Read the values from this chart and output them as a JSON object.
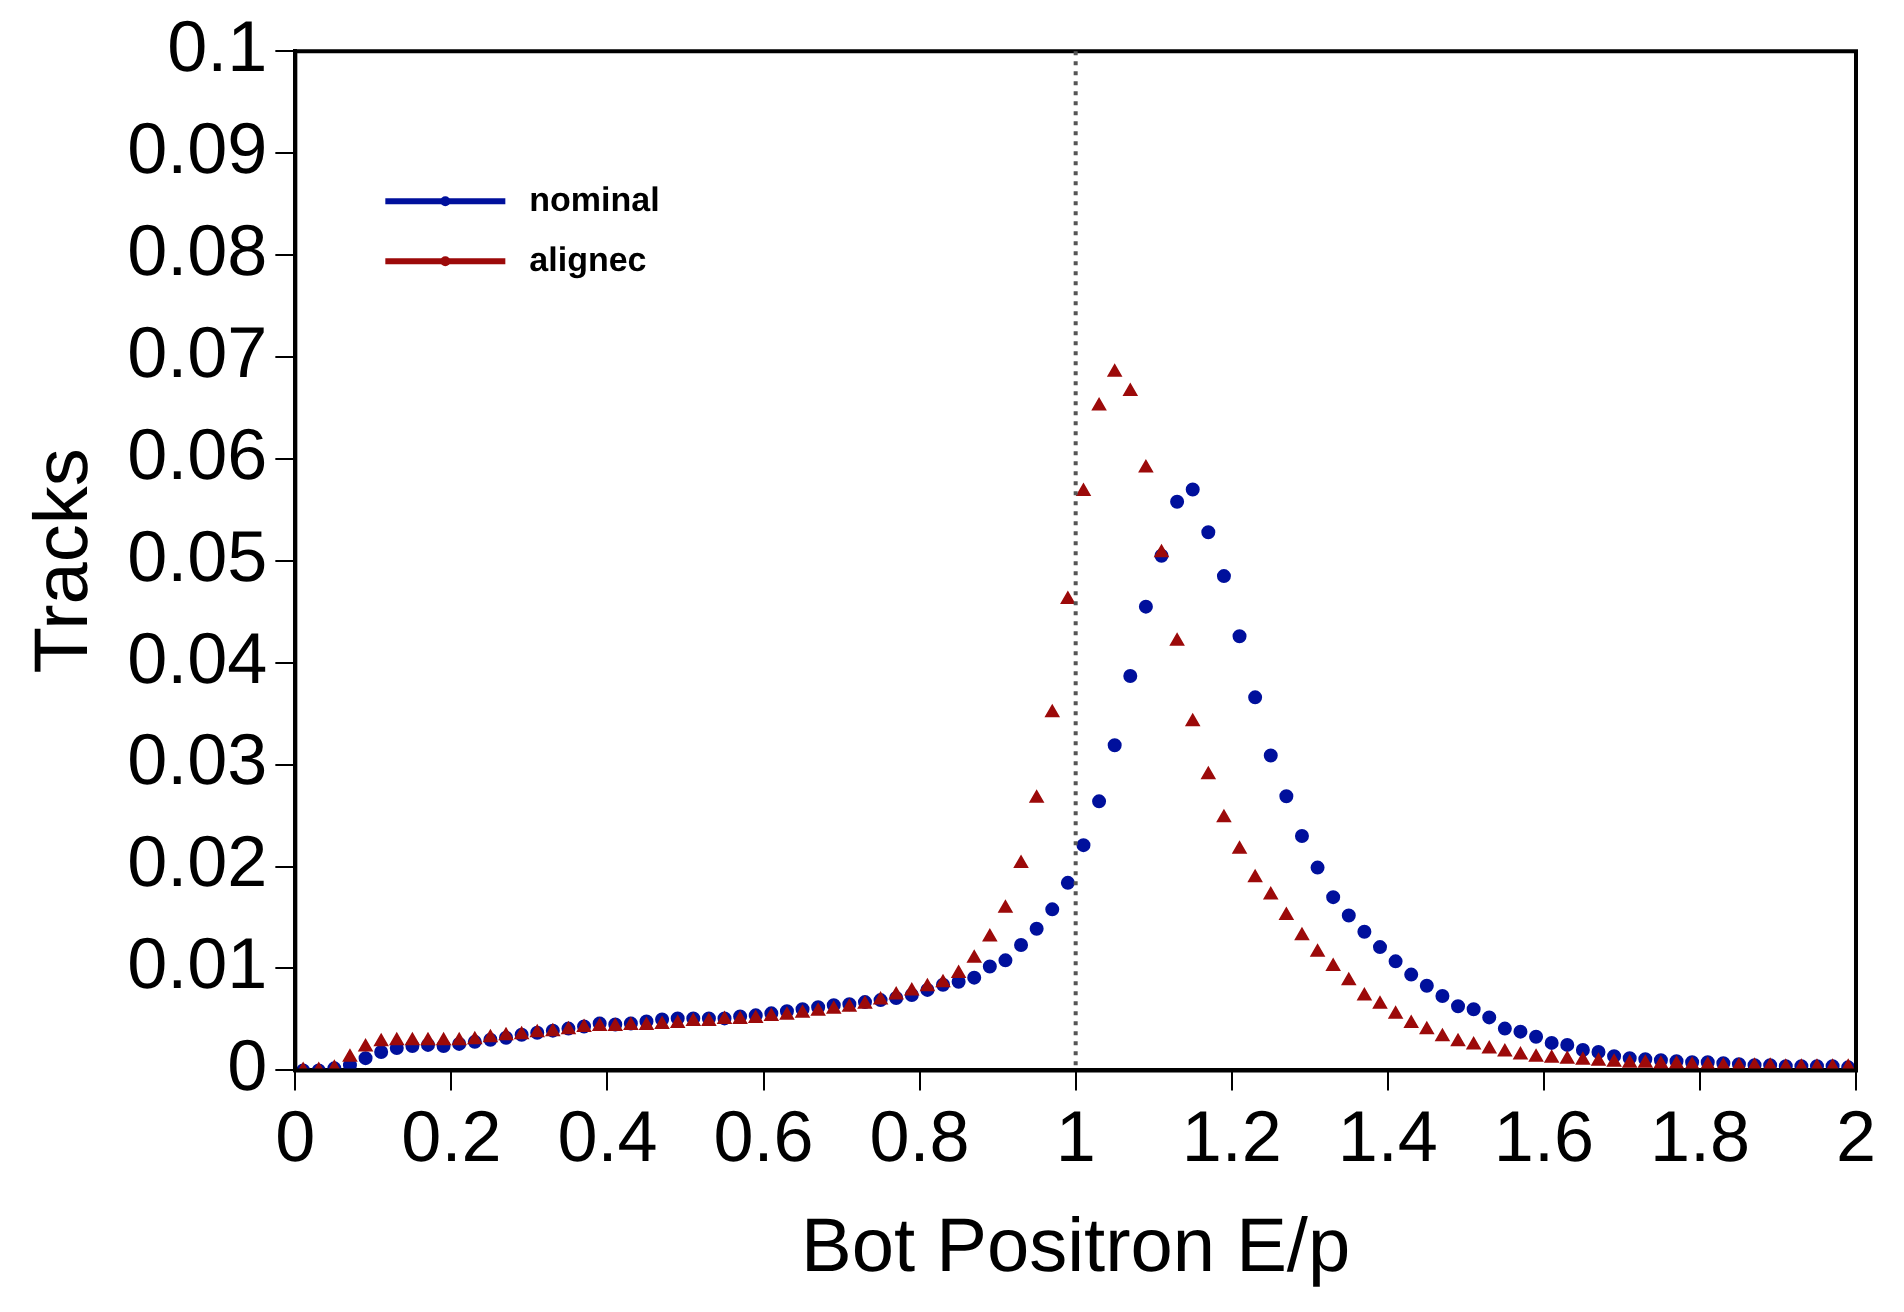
{
  "chart_data": {
    "type": "scatter",
    "xlabel": "Bot Positron E/p",
    "ylabel": "Tracks",
    "x": [
      0.01,
      0.03,
      0.05,
      0.07,
      0.09,
      0.11,
      0.13,
      0.15,
      0.17,
      0.19,
      0.21,
      0.23,
      0.25,
      0.27,
      0.29,
      0.31,
      0.33,
      0.35,
      0.37,
      0.39,
      0.41,
      0.43,
      0.45,
      0.47,
      0.49,
      0.51,
      0.53,
      0.55,
      0.57,
      0.59,
      0.61,
      0.63,
      0.65,
      0.67,
      0.69,
      0.71,
      0.73,
      0.75,
      0.77,
      0.79,
      0.81,
      0.83,
      0.85,
      0.87,
      0.89,
      0.91,
      0.93,
      0.95,
      0.97,
      0.99,
      1.01,
      1.03,
      1.05,
      1.07,
      1.09,
      1.11,
      1.13,
      1.15,
      1.17,
      1.19,
      1.21,
      1.23,
      1.25,
      1.27,
      1.29,
      1.31,
      1.33,
      1.35,
      1.37,
      1.39,
      1.41,
      1.43,
      1.45,
      1.47,
      1.49,
      1.51,
      1.53,
      1.55,
      1.57,
      1.59,
      1.61,
      1.63,
      1.65,
      1.67,
      1.69,
      1.71,
      1.73,
      1.75,
      1.77,
      1.79,
      1.81,
      1.83,
      1.85,
      1.87,
      1.89,
      1.91,
      1.93,
      1.95,
      1.97,
      1.99
    ],
    "series": [
      {
        "name": "nominal",
        "color": "#00109c",
        "marker": "circle",
        "values": [
          0,
          0,
          0.0002,
          0.0005,
          0.0012,
          0.0018,
          0.0022,
          0.0024,
          0.0025,
          0.0024,
          0.0026,
          0.0028,
          0.003,
          0.0032,
          0.0035,
          0.0037,
          0.0039,
          0.0041,
          0.0043,
          0.0046,
          0.0045,
          0.0046,
          0.0048,
          0.005,
          0.0051,
          0.0051,
          0.0051,
          0.0051,
          0.0053,
          0.0054,
          0.0056,
          0.0058,
          0.006,
          0.0062,
          0.0064,
          0.0065,
          0.0067,
          0.0069,
          0.0071,
          0.0074,
          0.0079,
          0.0084,
          0.0087,
          0.0091,
          0.0102,
          0.0108,
          0.0123,
          0.0139,
          0.0158,
          0.0184,
          0.0221,
          0.0264,
          0.0319,
          0.0387,
          0.0455,
          0.0505,
          0.0558,
          0.057,
          0.0528,
          0.0485,
          0.0426,
          0.0366,
          0.0309,
          0.0269,
          0.023,
          0.0199,
          0.017,
          0.0152,
          0.0136,
          0.0121,
          0.0107,
          0.0094,
          0.0083,
          0.0073,
          0.0063,
          0.006,
          0.0052,
          0.0041,
          0.0038,
          0.0033,
          0.0027,
          0.0025,
          0.002,
          0.0018,
          0.0014,
          0.0012,
          0.0011,
          0.001,
          0.0009,
          0.0008,
          0.0008,
          0.0007,
          0.0006,
          0.0005,
          0.0005,
          0.0004,
          0.0004,
          0.0004,
          0.0004,
          0.0003
        ]
      },
      {
        "name": "alignec",
        "color": "#9c0a0a",
        "marker": "triangle",
        "values": [
          0,
          0,
          0.0002,
          0.0013,
          0.0023,
          0.0028,
          0.0029,
          0.0029,
          0.0029,
          0.0029,
          0.0029,
          0.003,
          0.0032,
          0.0034,
          0.0035,
          0.0037,
          0.0038,
          0.004,
          0.0042,
          0.0043,
          0.0043,
          0.0044,
          0.0044,
          0.0045,
          0.0046,
          0.0048,
          0.0048,
          0.005,
          0.005,
          0.0051,
          0.0053,
          0.0054,
          0.0056,
          0.0058,
          0.006,
          0.0062,
          0.0065,
          0.0069,
          0.0074,
          0.0078,
          0.0082,
          0.0086,
          0.0095,
          0.011,
          0.0131,
          0.0159,
          0.0203,
          0.0267,
          0.0351,
          0.0462,
          0.0568,
          0.0652,
          0.0685,
          0.0666,
          0.0591,
          0.0508,
          0.0421,
          0.0342,
          0.029,
          0.0248,
          0.0217,
          0.0189,
          0.0172,
          0.0152,
          0.0132,
          0.0116,
          0.0102,
          0.0088,
          0.0073,
          0.0065,
          0.0055,
          0.0046,
          0.004,
          0.0033,
          0.0028,
          0.0025,
          0.0021,
          0.0018,
          0.0015,
          0.0013,
          0.0012,
          0.0011,
          0.001,
          0.0009,
          0.0008,
          0.0007,
          0.0007,
          0.0006,
          0.0006,
          0.0005,
          0.0005,
          0.0004,
          0.0004,
          0.0004,
          0.0004,
          0.0003,
          0.0003,
          0.0003,
          0.0003,
          0.0003
        ]
      }
    ],
    "xlim": [
      0,
      2
    ],
    "xticks": [
      0,
      0.2,
      0.4,
      0.6,
      0.8,
      1,
      1.2,
      1.4,
      1.6,
      1.8,
      2
    ],
    "ylim": [
      0,
      0.1
    ],
    "yticks": [
      0,
      0.01,
      0.02,
      0.03,
      0.04,
      0.05,
      0.06,
      0.07,
      0.08,
      0.09,
      0.1
    ],
    "ref_lines": [
      {
        "axis": "x",
        "value": 1,
        "color": "#555555",
        "line_style": "dotted"
      }
    ],
    "grid": false,
    "legend": "top left"
  }
}
